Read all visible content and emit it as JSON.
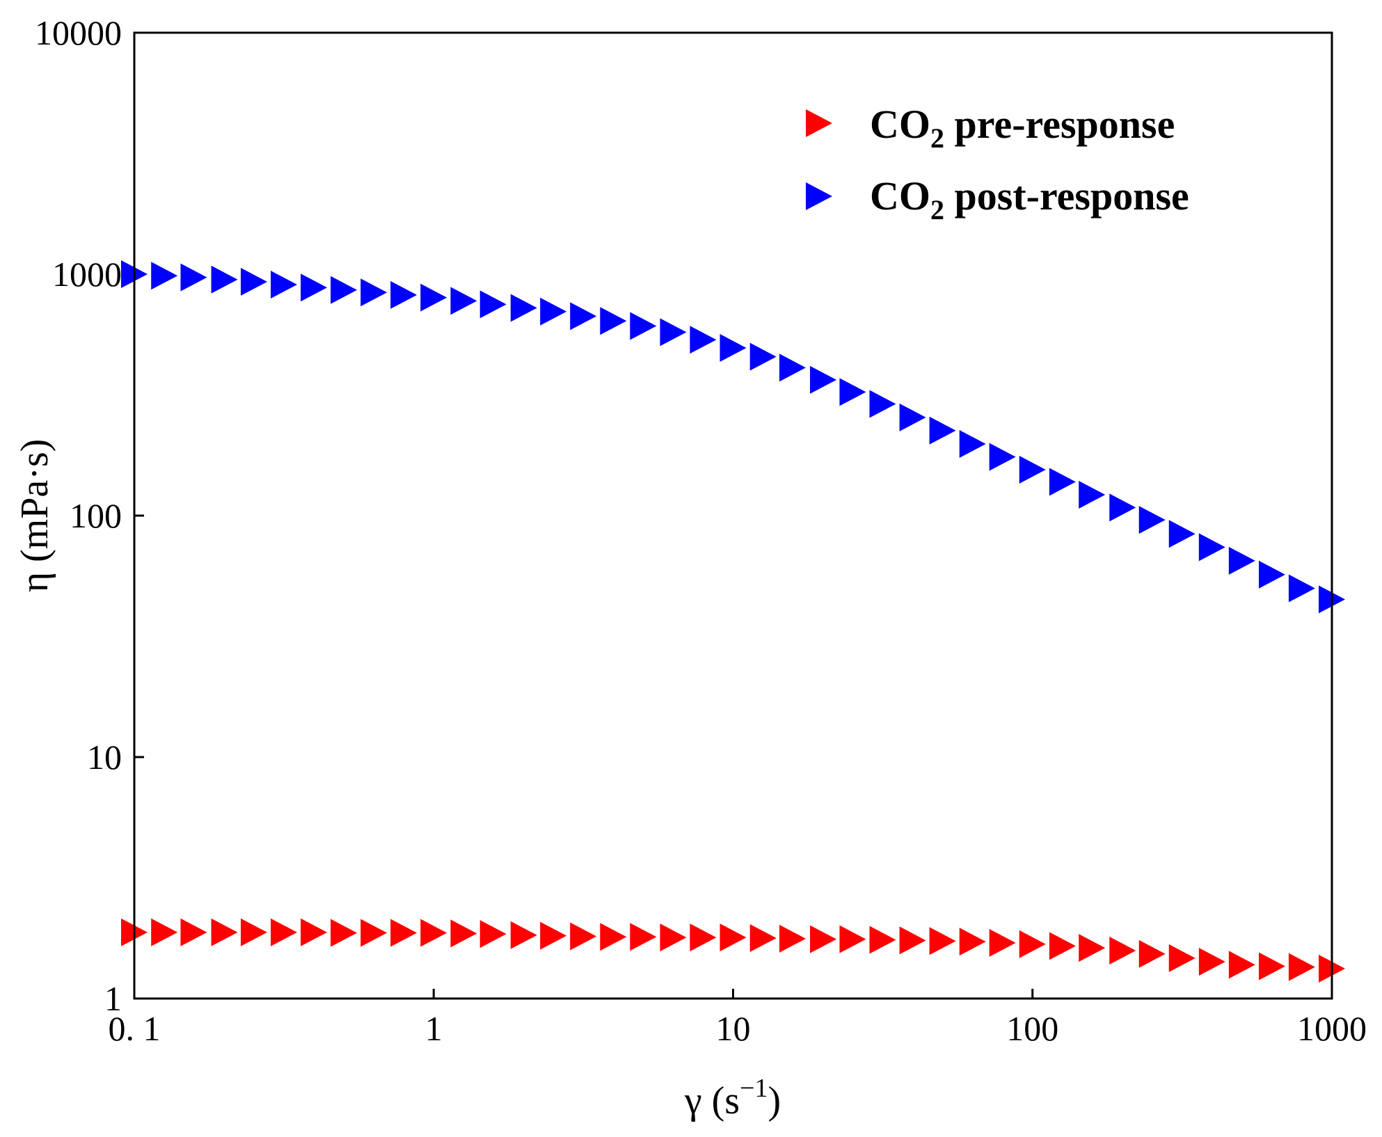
{
  "chart_data": {
    "type": "scatter",
    "xscale": "log",
    "yscale": "log",
    "xlim": [
      0.1,
      1000
    ],
    "ylim": [
      1,
      10000
    ],
    "xticks": [
      0.1,
      1,
      10,
      100,
      1000
    ],
    "xtick_labels": [
      "0. 1",
      "1",
      "10",
      "100",
      "1000"
    ],
    "yticks": [
      1,
      10,
      100,
      1000,
      10000
    ],
    "ytick_labels": [
      "1",
      "10",
      "100",
      "1000",
      "10000"
    ],
    "xlabel": {
      "base": "γ (s",
      "sup": "−1",
      "tail": ")"
    },
    "ylabel": "η (mPa·s)",
    "legend_position": "top-right",
    "marker": "right-triangle",
    "series": [
      {
        "name_prefix": "CO",
        "name_sub": "2",
        "name_suffix": " pre-response",
        "color": "#ff0000",
        "x": [
          0.1,
          0.126,
          0.158,
          0.2,
          0.251,
          0.316,
          0.398,
          0.501,
          0.631,
          0.794,
          1,
          1.26,
          1.58,
          2,
          2.51,
          3.16,
          3.98,
          5.01,
          6.31,
          7.94,
          10,
          12.6,
          15.8,
          20,
          25.1,
          31.6,
          39.8,
          50.1,
          63.1,
          79.4,
          100,
          126,
          158,
          200,
          251,
          316,
          398,
          501,
          631,
          794,
          1000
        ],
        "y": [
          1.88,
          1.88,
          1.88,
          1.88,
          1.88,
          1.88,
          1.88,
          1.87,
          1.87,
          1.87,
          1.87,
          1.86,
          1.85,
          1.83,
          1.82,
          1.81,
          1.8,
          1.8,
          1.79,
          1.79,
          1.79,
          1.78,
          1.77,
          1.76,
          1.76,
          1.75,
          1.74,
          1.73,
          1.72,
          1.7,
          1.68,
          1.65,
          1.62,
          1.58,
          1.53,
          1.47,
          1.42,
          1.38,
          1.36,
          1.35,
          1.33
        ]
      },
      {
        "name_prefix": "CO",
        "name_sub": "2",
        "name_suffix": " post-response",
        "color": "#0000ff",
        "x": [
          0.1,
          0.126,
          0.158,
          0.2,
          0.251,
          0.316,
          0.398,
          0.501,
          0.631,
          0.794,
          1,
          1.26,
          1.58,
          2,
          2.51,
          3.16,
          3.98,
          5.01,
          6.31,
          7.94,
          10,
          12.6,
          15.8,
          20,
          25.1,
          31.6,
          39.8,
          50.1,
          63.1,
          79.4,
          100,
          126,
          158,
          200,
          251,
          316,
          398,
          501,
          631,
          794,
          1000
        ],
        "y": [
          1000,
          985,
          970,
          950,
          930,
          905,
          880,
          860,
          840,
          820,
          800,
          775,
          750,
          725,
          700,
          670,
          640,
          610,
          575,
          535,
          495,
          455,
          410,
          365,
          325,
          290,
          255,
          225,
          198,
          175,
          155,
          138,
          122,
          108,
          96,
          84,
          74,
          65,
          57,
          50,
          45
        ]
      }
    ]
  }
}
